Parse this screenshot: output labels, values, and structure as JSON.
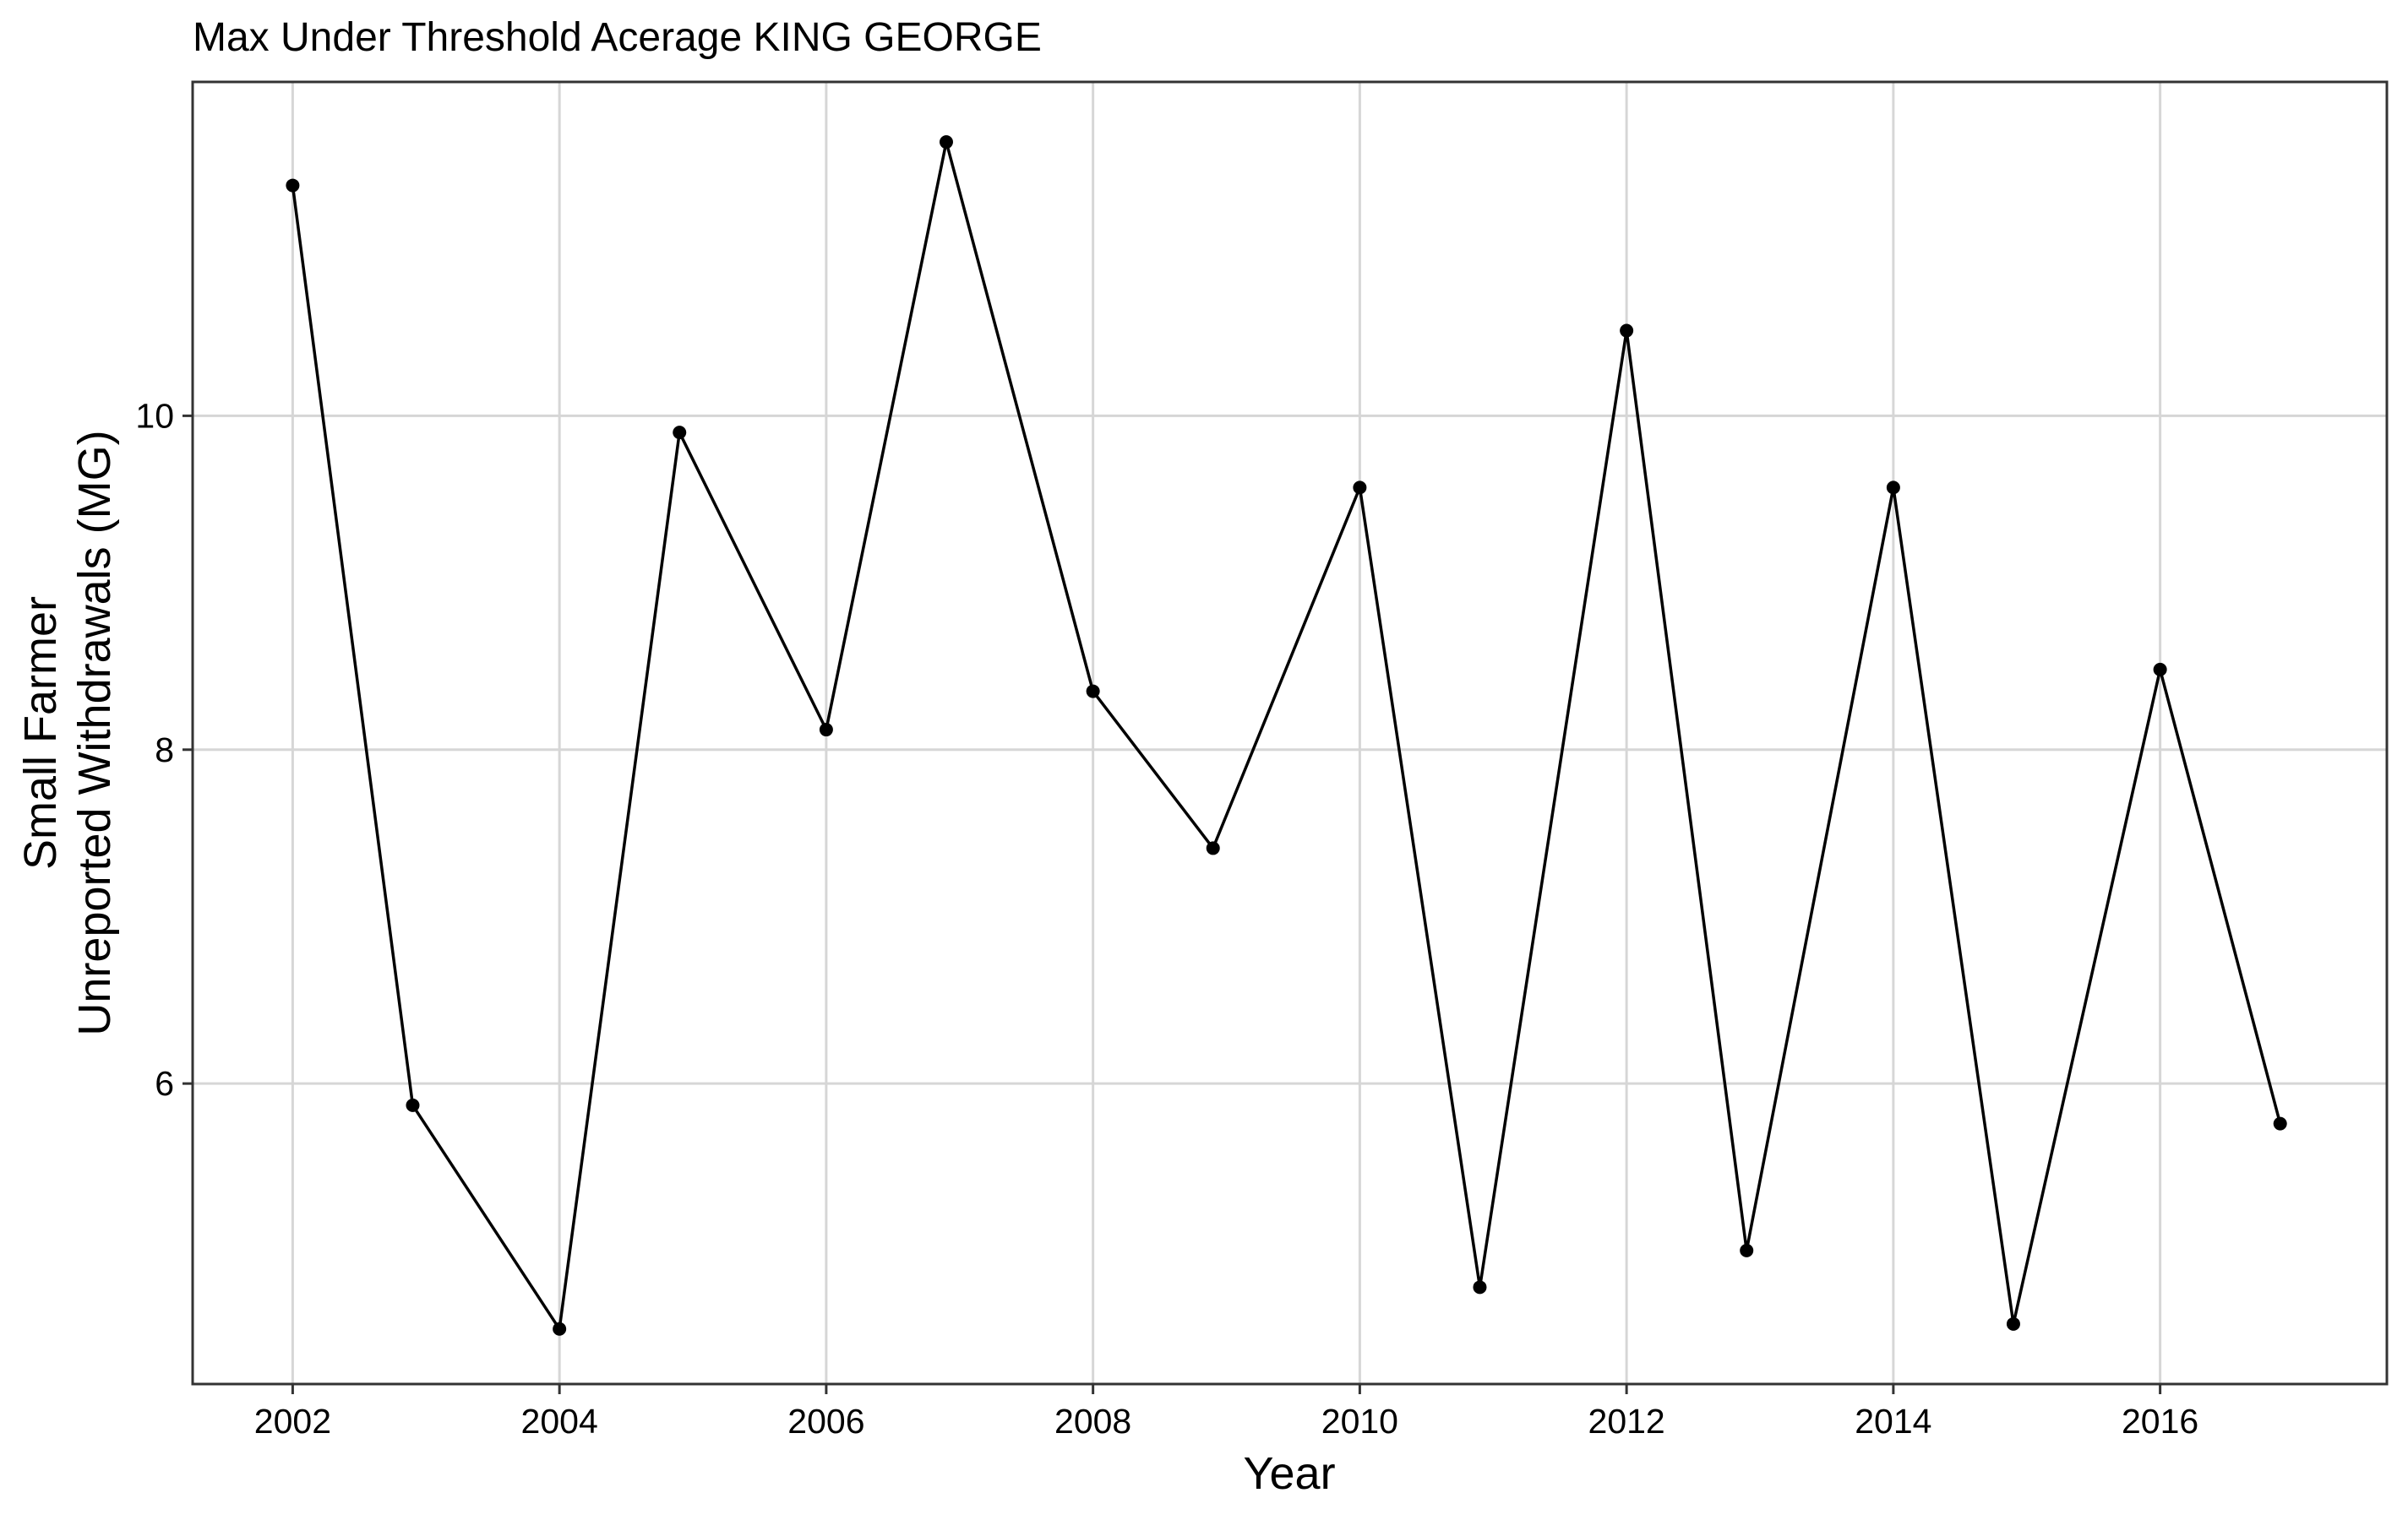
{
  "chart_data": {
    "type": "line",
    "title": "Max Under Threshold Acerage KING GEORGE",
    "xlabel": "Year",
    "ylabel_lines": [
      "Small Farmer",
      "Unreported Withdrawals (MG)"
    ],
    "x_ticks": [
      2002,
      2004,
      2006,
      2008,
      2010,
      2012,
      2014,
      2016
    ],
    "y_ticks": [
      6,
      8,
      10
    ],
    "xlim": [
      2001.25,
      2017.7
    ],
    "ylim": [
      4.2,
      12.0
    ],
    "grid": true,
    "legend": "none",
    "series": [
      {
        "color": "#000000",
        "x": [
          2002.0,
          2002.9,
          2004.0,
          2004.9,
          2006.0,
          2006.9,
          2008.0,
          2008.9,
          2010.0,
          2010.9,
          2012.0,
          2012.9,
          2014.0,
          2014.9,
          2016.0,
          2016.9
        ],
        "y": [
          11.38,
          5.87,
          4.53,
          9.9,
          8.12,
          11.64,
          8.35,
          7.41,
          9.57,
          4.78,
          10.51,
          5.0,
          9.57,
          4.56,
          8.48,
          5.76
        ]
      }
    ]
  }
}
